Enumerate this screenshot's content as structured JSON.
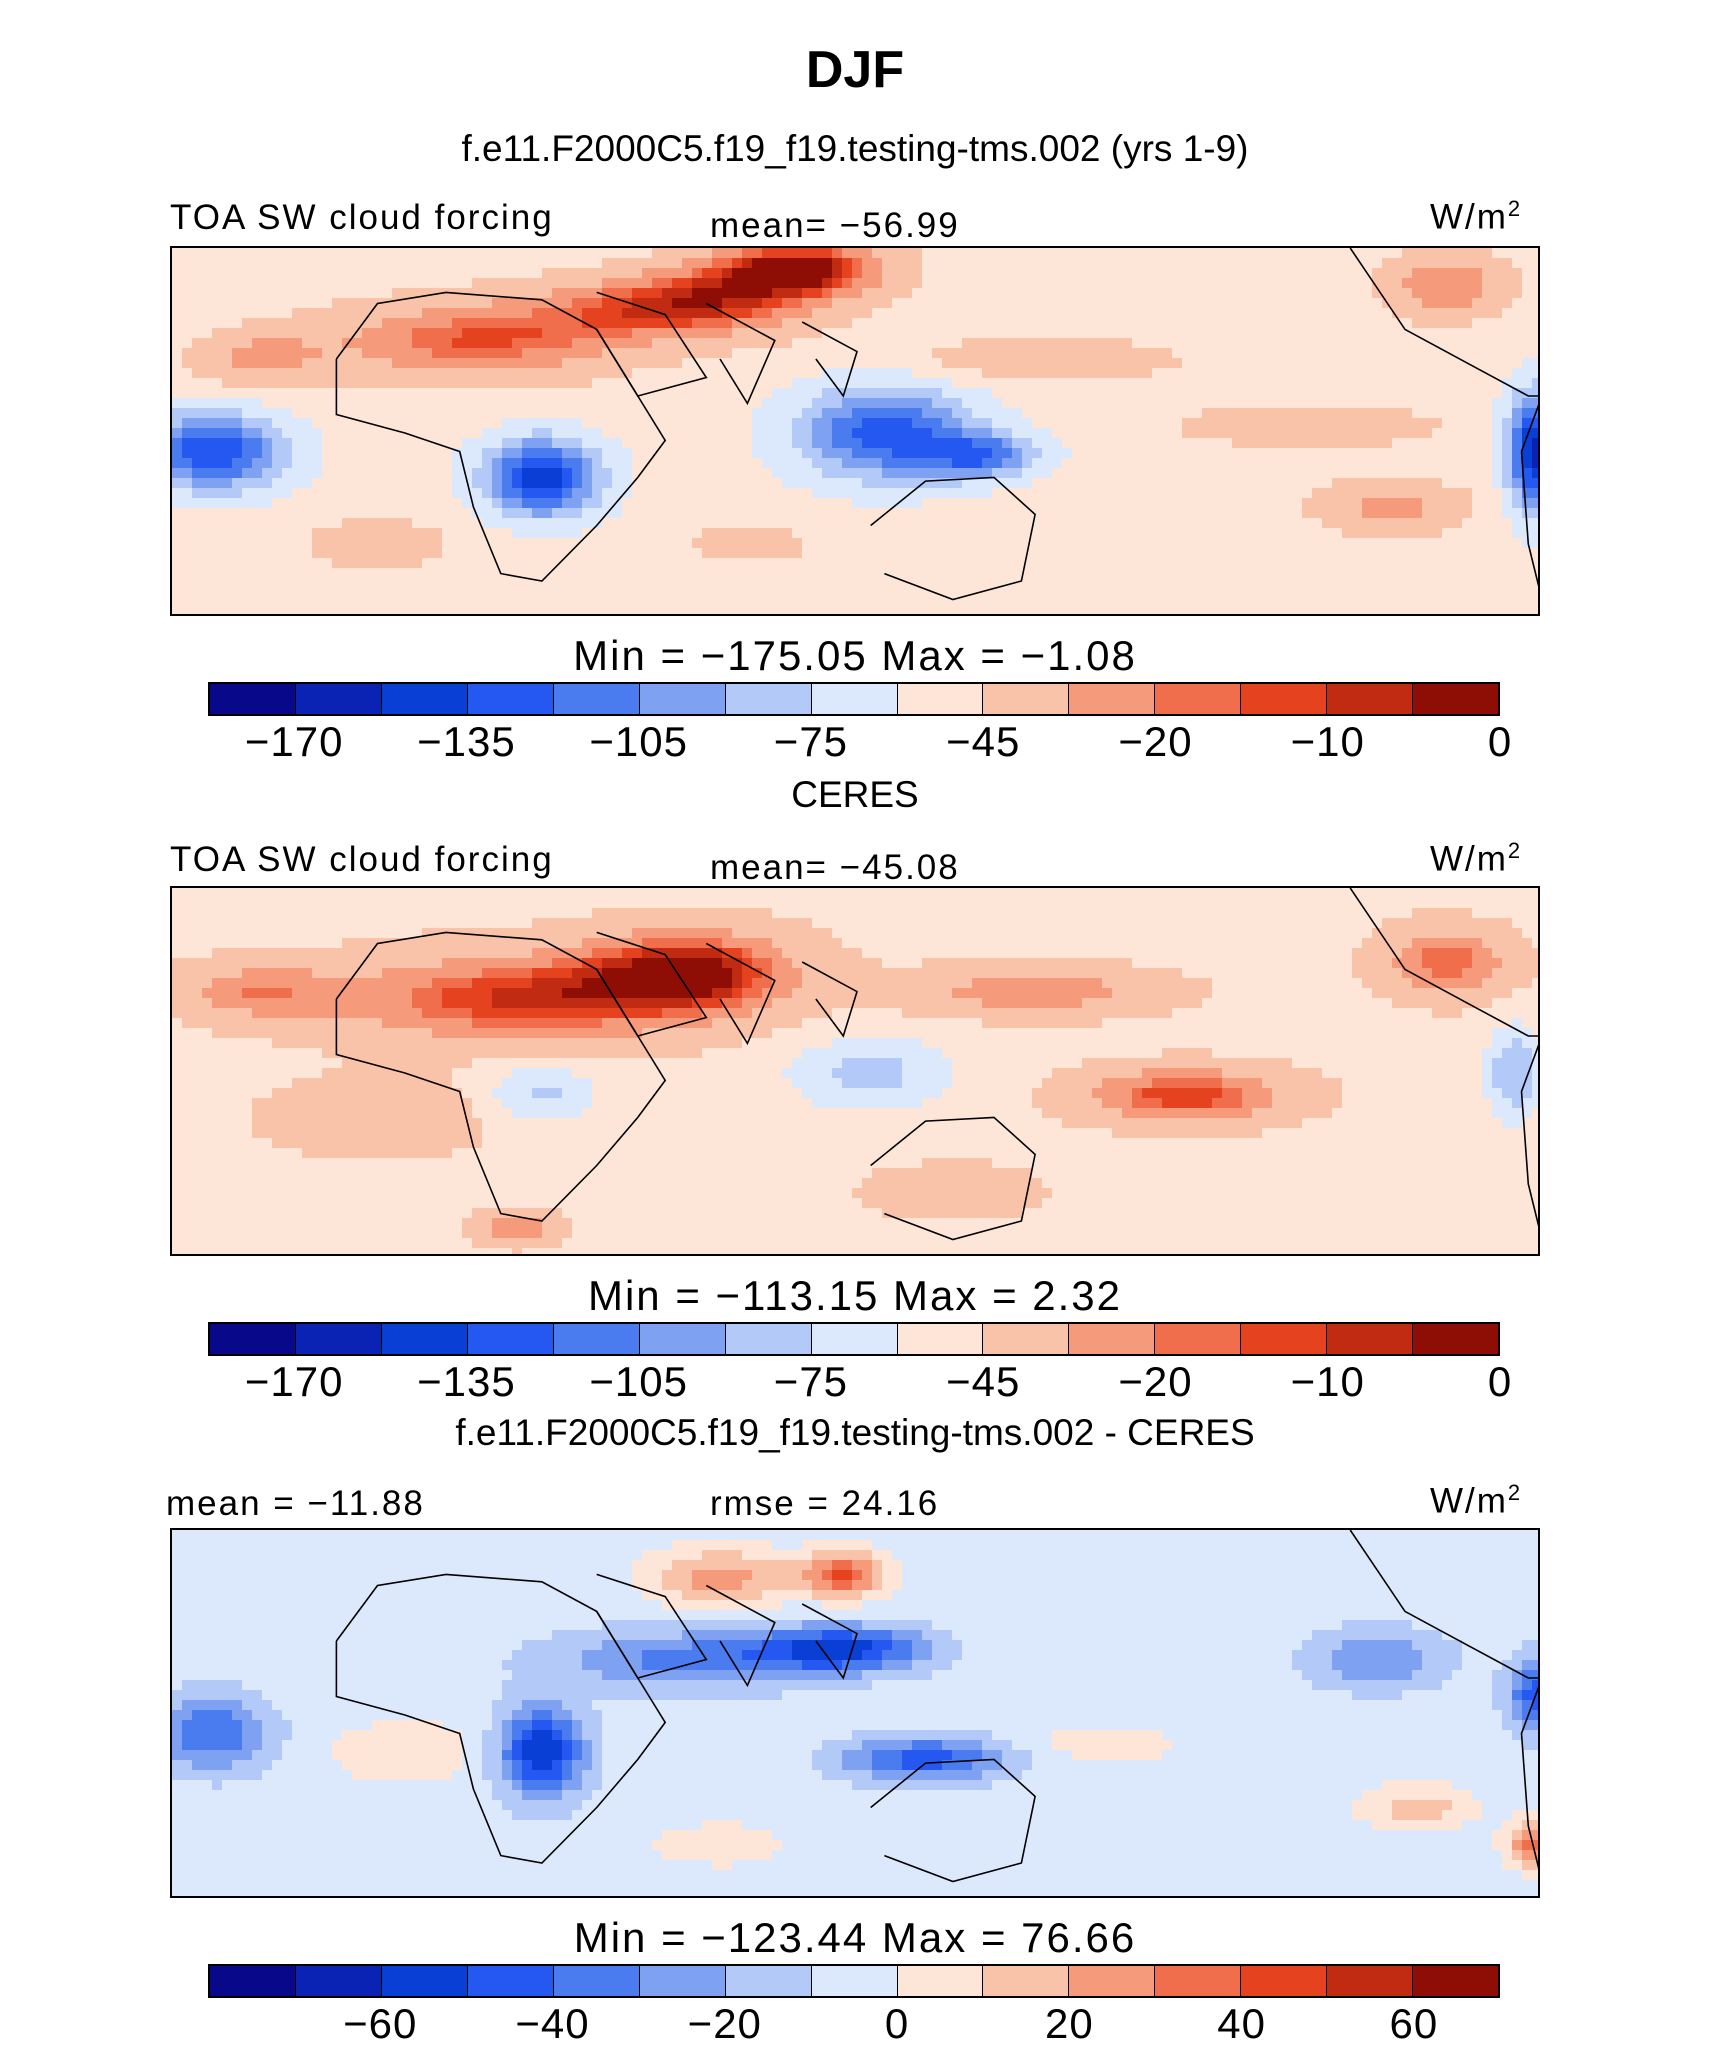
{
  "title": "DJF",
  "panels": [
    {
      "id": "model",
      "subtitle": "f.e11.F2000C5.f19_f19.testing-tms.002 (yrs 1-9)",
      "left_label": "TOA SW cloud forcing",
      "center_label": "mean= −56.99",
      "units_base": "W/m",
      "units_exp": "2",
      "minmax": "Min  =  −175.05  Max  =    −1.08",
      "colorbar_ticks": [
        "−170",
        "−135",
        "−105",
        "−75",
        "−45",
        "−20",
        "−10",
        "0"
      ]
    },
    {
      "id": "obs",
      "subtitle": "CERES",
      "left_label": "TOA SW cloud forcing",
      "center_label": "mean= −45.08",
      "units_base": "W/m",
      "units_exp": "2",
      "minmax": "Min  =  −113.15  Max  =      2.32",
      "colorbar_ticks": [
        "−170",
        "−135",
        "−105",
        "−75",
        "−45",
        "−20",
        "−10",
        "0"
      ]
    },
    {
      "id": "diff",
      "subtitle": "f.e11.F2000C5.f19_f19.testing-tms.002 - CERES",
      "left_label": "mean  =  −11.88",
      "center_label": "rmse  =    24.16",
      "units_base": "W/m",
      "units_exp": "2",
      "minmax": "Min  =  −123.44  Max  =    76.66",
      "colorbar_ticks": [
        "−60",
        "−40",
        "−20",
        "0",
        "20",
        "40",
        "60"
      ]
    }
  ],
  "chart_data": {
    "type": "heatmap",
    "season": "DJF",
    "variable": "TOA SW cloud forcing",
    "units": "W/m2",
    "panels": [
      {
        "name": "f.e11.F2000C5.f19_f19.testing-tms.002 (yrs 1-9)",
        "mean": -56.99,
        "min": -175.05,
        "max": -1.08,
        "contour_levels": [
          -170,
          -150,
          -135,
          -120,
          -105,
          -90,
          -75,
          -60,
          -45,
          -30,
          -20,
          -15,
          -10,
          -5,
          0
        ],
        "colorbar_ticks": [
          -170,
          -135,
          -105,
          -75,
          -45,
          -20,
          -10,
          0
        ]
      },
      {
        "name": "CERES",
        "mean": -45.08,
        "min": -113.15,
        "max": 2.32,
        "contour_levels": [
          -170,
          -150,
          -135,
          -120,
          -105,
          -90,
          -75,
          -60,
          -45,
          -30,
          -20,
          -15,
          -10,
          -5,
          0
        ],
        "colorbar_ticks": [
          -170,
          -135,
          -105,
          -75,
          -45,
          -20,
          -10,
          0
        ]
      },
      {
        "name": "f.e11.F2000C5.f19_f19.testing-tms.002 - CERES",
        "mean": -11.88,
        "rmse": 24.16,
        "min": -123.44,
        "max": 76.66,
        "contour_levels": [
          -70,
          -60,
          -50,
          -40,
          -30,
          -20,
          -10,
          0,
          10,
          20,
          30,
          40,
          50,
          60,
          70
        ],
        "colorbar_ticks": [
          -60,
          -40,
          -20,
          0,
          20,
          40,
          60
        ]
      }
    ],
    "colormap": [
      "#08088a",
      "#0a23b4",
      "#0a3fd6",
      "#2558f0",
      "#4a7cf0",
      "#7ea1f2",
      "#b3c9f8",
      "#dce8fb",
      "#fde6d8",
      "#f9c3aa",
      "#f59a7a",
      "#f06e4c",
      "#e5431f",
      "#c02b12",
      "#8e0e06"
    ]
  }
}
